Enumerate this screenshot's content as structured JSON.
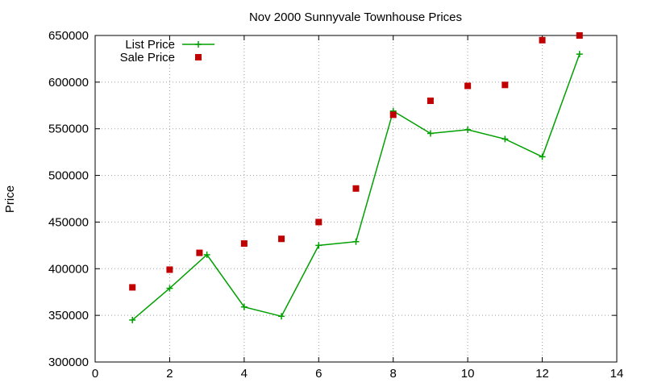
{
  "chart_data": {
    "type": "line",
    "title": "Nov 2000 Sunnyvale Townhouse Prices",
    "xlabel": "",
    "ylabel": "Price",
    "xlim": [
      0,
      14
    ],
    "ylim": [
      300000,
      650000
    ],
    "x_ticks": [
      0,
      2,
      4,
      6,
      8,
      10,
      12,
      14
    ],
    "y_ticks": [
      300000,
      350000,
      400000,
      450000,
      500000,
      550000,
      600000,
      650000
    ],
    "grid": true,
    "legend_position": "top-left",
    "series": [
      {
        "name": "List Price",
        "style": "line-with-plus-markers",
        "color": "#00a000",
        "points": [
          [
            1,
            345000
          ],
          [
            2,
            379000
          ],
          [
            3,
            415000
          ],
          [
            4,
            359000
          ],
          [
            5,
            349000
          ],
          [
            6,
            425000
          ],
          [
            7,
            429000
          ],
          [
            8,
            569000
          ],
          [
            9,
            545000
          ],
          [
            10,
            549000
          ],
          [
            11,
            539000
          ],
          [
            12,
            520000
          ],
          [
            13,
            630000
          ]
        ]
      },
      {
        "name": "Sale Price",
        "style": "square-markers",
        "color": "#c00000",
        "points": [
          [
            1,
            380000
          ],
          [
            2,
            399000
          ],
          [
            2.8,
            417000
          ],
          [
            4,
            427000
          ],
          [
            5,
            432000
          ],
          [
            6,
            450000
          ],
          [
            7,
            486000
          ],
          [
            8,
            565000
          ],
          [
            9,
            580000
          ],
          [
            10,
            596000
          ],
          [
            11,
            597000
          ],
          [
            12,
            645000
          ],
          [
            13,
            650000
          ]
        ]
      }
    ]
  }
}
